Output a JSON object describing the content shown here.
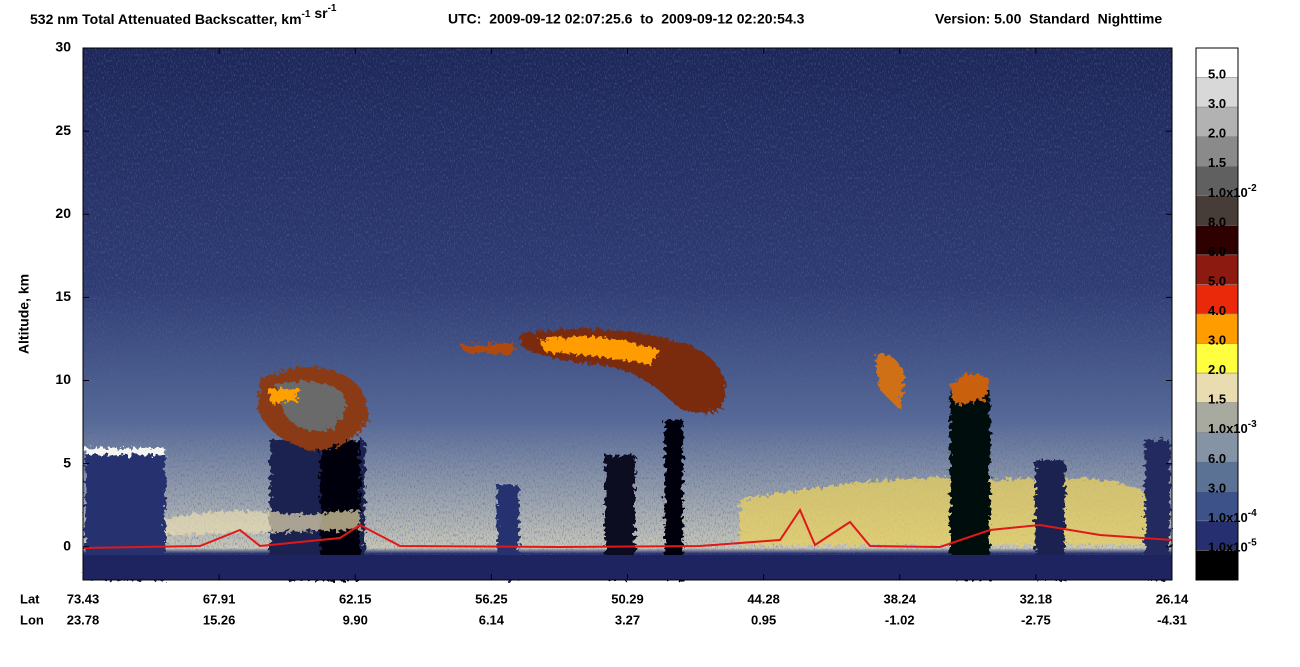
{
  "chart_data": {
    "type": "curtain",
    "title": [
      {
        "text": "532 nm Total Attenuated Backscatter, km",
        "sup": "-1"
      },
      {
        "text": " sr",
        "sup": "-1"
      }
    ],
    "time_range": "UTC:  2009-09-12 02:07:25.6  to  2009-09-12 02:20:54.3",
    "version": "Version: 5.00  Standard  Nighttime",
    "y_label": "Altitude, km",
    "ylim": [
      -2,
      30
    ],
    "yticks": [
      0,
      5,
      10,
      15,
      20,
      25,
      30
    ],
    "x_rows": [
      {
        "name": "Lat",
        "labels": [
          "73.43",
          "67.91",
          "62.15",
          "56.25",
          "50.29",
          "44.28",
          "38.24",
          "32.18",
          "26.14"
        ]
      },
      {
        "name": "Lon",
        "labels": [
          "23.78",
          "15.26",
          "9.90",
          "6.14",
          "3.27",
          "0.95",
          "-1.02",
          "-2.75",
          "-4.31"
        ]
      }
    ],
    "colorbar": {
      "colors": [
        "#ffffff",
        "#d8d8d8",
        "#b2b2b2",
        "#8a8a8a",
        "#606060",
        "#463c38",
        "#2e0000",
        "#8c1a10",
        "#ea280a",
        "#ff9c00",
        "#ffff40",
        "#e8dcb0",
        "#a8aaa0",
        "#8494a4",
        "#5c7294",
        "#3c5288",
        "#263070",
        "#000000"
      ],
      "labels": [
        "5.0",
        "3.0",
        "2.0",
        "1.5",
        {
          "text": "1.0x10",
          "sup": "-2"
        },
        "8.0",
        "6.0",
        "5.0",
        "4.0",
        "3.0",
        "2.0",
        "1.5",
        {
          "text": "1.0x10",
          "sup": "-3"
        },
        "6.0",
        "3.0",
        {
          "text": "1.0x10",
          "sup": "-4"
        },
        {
          "text": "1.0x10",
          "sup": "-5"
        }
      ]
    }
  }
}
